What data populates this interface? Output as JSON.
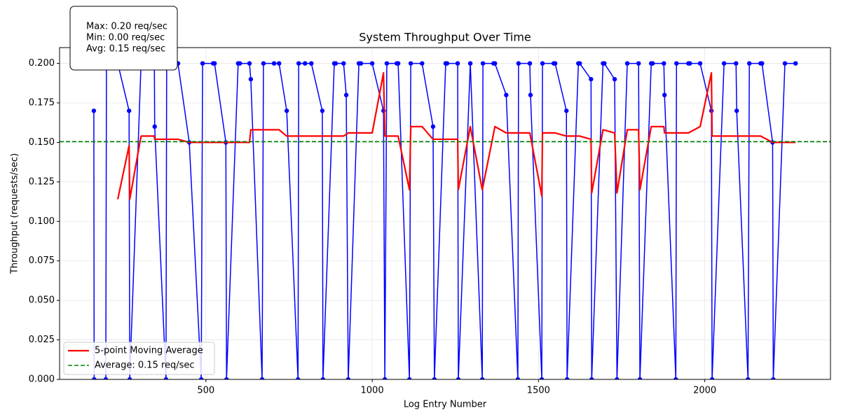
{
  "chart_data": {
    "type": "line",
    "title": "System Throughput Over Time",
    "xlabel": "Log Entry Number",
    "ylabel": "Throughput (requests/sec)",
    "annotations": [
      "Max: 0.20 req/sec",
      "Min: 0.00 req/sec",
      "Avg: 0.15 req/sec"
    ],
    "xlim": [
      60,
      2378
    ],
    "ylim": [
      0,
      0.21
    ],
    "xticks": [
      500,
      1000,
      1500,
      2000
    ],
    "yticks": [
      {
        "value": 0,
        "label": "0.000"
      },
      {
        "value": 0.025,
        "label": "0.025"
      },
      {
        "value": 0.05,
        "label": "0.050"
      },
      {
        "value": 0.075,
        "label": "0.075"
      },
      {
        "value": 0.1,
        "label": "0.100"
      },
      {
        "value": 0.125,
        "label": "0.125"
      },
      {
        "value": 0.15,
        "label": "0.150"
      },
      {
        "value": 0.175,
        "label": "0.175"
      },
      {
        "value": 0.2,
        "label": "0.200"
      }
    ],
    "grid": true,
    "legend": "lower left",
    "series": [
      {
        "color": "#0000ff",
        "markers": true,
        "x": [
          163,
          164,
          199,
          201,
          235,
          269,
          271,
          305,
          311,
          345,
          346,
          380,
          382,
          416,
          450,
          486,
          490,
          522,
          526,
          560,
          562,
          597,
          602,
          631,
          635,
          669,
          673,
          705,
          720,
          743,
          777,
          779,
          798,
          817,
          850,
          852,
          886,
          890,
          914,
          922,
          928,
          960,
          966,
          1000,
          1034,
          1038,
          1044,
          1074,
          1078,
          1112,
          1116,
          1150,
          1183,
          1187,
          1221,
          1225,
          1257,
          1259,
          1295,
          1331,
          1333,
          1365,
          1369,
          1403,
          1438,
          1440,
          1474,
          1476,
          1510,
          1512,
          1546,
          1550,
          1584,
          1586,
          1620,
          1624,
          1658,
          1660,
          1694,
          1698,
          1729,
          1736,
          1767,
          1801,
          1805,
          1839,
          1843,
          1877,
          1879,
          1913,
          1915,
          1951,
          1955,
          1986,
          2020,
          2022,
          2058,
          2094,
          2096,
          2130,
          2134,
          2168,
          2172,
          2204,
          2206,
          2241,
          2273
        ],
        "values": [
          0.17,
          0,
          0,
          0.2,
          0.2,
          0.17,
          0,
          0.2,
          0.2,
          0.2,
          0.16,
          0,
          0.2,
          0.2,
          0.15,
          0,
          0.2,
          0.2,
          0.2,
          0.15,
          0,
          0.2,
          0.2,
          0.2,
          0.19,
          0,
          0.2,
          0.2,
          0.2,
          0.17,
          0,
          0.2,
          0.2,
          0.2,
          0.17,
          0,
          0.2,
          0.2,
          0.2,
          0.18,
          0,
          0.2,
          0.2,
          0.2,
          0.17,
          0,
          0.2,
          0.2,
          0.2,
          0,
          0.2,
          0.2,
          0.16,
          0,
          0.2,
          0.2,
          0.2,
          0,
          0.2,
          0,
          0.2,
          0.2,
          0.2,
          0.18,
          0,
          0.2,
          0.2,
          0.18,
          0,
          0.2,
          0.2,
          0.2,
          0.17,
          0,
          0.2,
          0.2,
          0.19,
          0,
          0.2,
          0.2,
          0.19,
          0,
          0.2,
          0.2,
          0,
          0.2,
          0.2,
          0.2,
          0.18,
          0,
          0.2,
          0.2,
          0.2,
          0.2,
          0.17,
          0,
          0.2,
          0.2,
          0.17,
          0,
          0.2,
          0.2,
          0.2,
          0.15,
          0,
          0.2,
          0.2
        ]
      },
      {
        "name": "5-point Moving Average",
        "color": "#ff0000",
        "markers": false,
        "width": 2.2,
        "x": [
          235,
          269,
          271,
          305,
          345,
          346,
          416,
          450,
          486,
          560,
          597,
          631,
          635,
          720,
          743,
          850,
          914,
          928,
          1000,
          1034,
          1038,
          1078,
          1112,
          1116,
          1150,
          1183,
          1257,
          1259,
          1295,
          1331,
          1369,
          1403,
          1474,
          1510,
          1512,
          1550,
          1584,
          1624,
          1658,
          1660,
          1694,
          1729,
          1736,
          1767,
          1801,
          1805,
          1839,
          1877,
          1879,
          1951,
          1986,
          2020,
          2022,
          2168,
          2204,
          2273
        ],
        "values": [
          0.114,
          0.148,
          0.114,
          0.154,
          0.154,
          0.152,
          0.152,
          0.15,
          0.15,
          0.15,
          0.15,
          0.15,
          0.158,
          0.158,
          0.154,
          0.154,
          0.154,
          0.156,
          0.156,
          0.194,
          0.154,
          0.154,
          0.12,
          0.16,
          0.16,
          0.152,
          0.152,
          0.12,
          0.16,
          0.12,
          0.16,
          0.156,
          0.156,
          0.116,
          0.156,
          0.156,
          0.154,
          0.154,
          0.152,
          0.118,
          0.158,
          0.156,
          0.118,
          0.158,
          0.158,
          0.12,
          0.16,
          0.16,
          0.156,
          0.156,
          0.16,
          0.194,
          0.154,
          0.154,
          0.15,
          0.15
        ]
      }
    ],
    "average_line": {
      "name": "Average: 0.15 req/sec",
      "value": 0.1505,
      "color": "#008000"
    }
  }
}
